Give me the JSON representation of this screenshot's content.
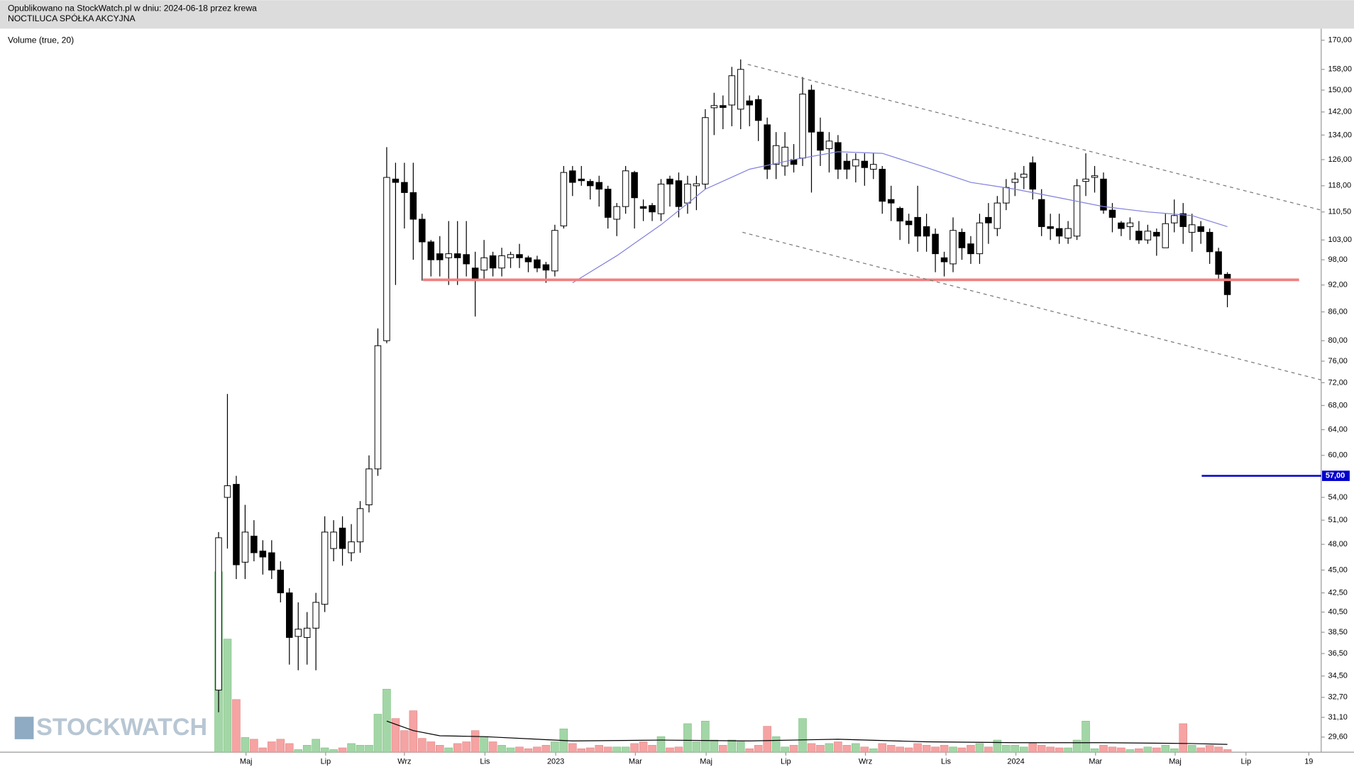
{
  "header": {
    "published": "Opublikowano na StockWatch.pl w dniu: 2024-06-18 przez krewa",
    "company": "NOCTILUCA SPÓŁKA AKCYJNA"
  },
  "watermark": "STOCKWATCH",
  "chart_data": {
    "type": "candlestick",
    "indicator_label": "Volume (true, 20)",
    "log_scale": true,
    "xlim": [
      -24.7,
      124.6
    ],
    "ylim": [
      28.5,
      175
    ],
    "volume_ylim": [
      0,
      838
    ],
    "up_color": "#ffffff",
    "down_color": "#000000",
    "volume_up_color": "#a3d6a6",
    "volume_down_color": "#f5a3a3",
    "xticks": [
      {
        "value": 3.1,
        "label": "Maj"
      },
      {
        "value": 12.1,
        "label": "Lip"
      },
      {
        "value": 21.0,
        "label": "Wrz"
      },
      {
        "value": 30.1,
        "label": "Lis"
      },
      {
        "value": 38.1,
        "label": "2023"
      },
      {
        "value": 47.1,
        "label": "Mar"
      },
      {
        "value": 55.1,
        "label": "Maj"
      },
      {
        "value": 64.1,
        "label": "Lip"
      },
      {
        "value": 73.1,
        "label": "Wrz"
      },
      {
        "value": 82.2,
        "label": "Lis"
      },
      {
        "value": 90.1,
        "label": "2024"
      },
      {
        "value": 99.1,
        "label": "Mar"
      },
      {
        "value": 108.1,
        "label": "Maj"
      },
      {
        "value": 116.1,
        "label": "Lip"
      },
      {
        "value": 123.2,
        "label": "19"
      }
    ],
    "yticks": [
      {
        "value": 170,
        "label": "170,00"
      },
      {
        "value": 158,
        "label": "158,00"
      },
      {
        "value": 150,
        "label": "150,00"
      },
      {
        "value": 142,
        "label": "142,00"
      },
      {
        "value": 134,
        "label": "134,00"
      },
      {
        "value": 126,
        "label": "126,00"
      },
      {
        "value": 118,
        "label": "118,00"
      },
      {
        "value": 110.5,
        "label": "110,50"
      },
      {
        "value": 103,
        "label": "103,00"
      },
      {
        "value": 98,
        "label": "98,00"
      },
      {
        "value": 92,
        "label": "92,00"
      },
      {
        "value": 86,
        "label": "86,00"
      },
      {
        "value": 80,
        "label": "80,00"
      },
      {
        "value": 76,
        "label": "76,00"
      },
      {
        "value": 72,
        "label": "72,00"
      },
      {
        "value": 68,
        "label": "68,00"
      },
      {
        "value": 64,
        "label": "64,00"
      },
      {
        "value": 60,
        "label": "60,00"
      },
      {
        "value": 54,
        "label": "54,00"
      },
      {
        "value": 51,
        "label": "51,00"
      },
      {
        "value": 48,
        "label": "48,00"
      },
      {
        "value": 45,
        "label": "45,00"
      },
      {
        "value": 42.5,
        "label": "42,50"
      },
      {
        "value": 40.5,
        "label": "40,50"
      },
      {
        "value": 38.5,
        "label": "38,50"
      },
      {
        "value": 36.5,
        "label": "36,50"
      },
      {
        "value": 34.5,
        "label": "34,50"
      },
      {
        "value": 32.7,
        "label": "32,70"
      },
      {
        "value": 31.1,
        "label": "31,10"
      },
      {
        "value": 29.6,
        "label": "29,60"
      }
    ],
    "price_marker": {
      "value": 57,
      "label": "57,00",
      "color": "#0000cc"
    },
    "open": [
      33.3,
      54,
      55.8,
      45.9,
      49,
      47.2,
      47,
      45,
      42.5,
      38.1,
      38,
      38.9,
      41.3,
      47.5,
      50,
      47,
      48.3,
      53,
      58,
      80,
      120,
      119,
      116,
      108.5,
      102.5,
      99.5,
      98.5,
      99.5,
      99.3,
      96,
      95.5,
      99,
      96,
      98.5,
      99.3,
      98.5,
      98,
      96.8,
      95.3,
      106.7,
      122.5,
      120,
      119.3,
      119,
      117,
      108.5,
      112,
      122,
      112,
      112.3,
      110,
      120,
      119.5,
      113,
      118,
      118.5,
      143.5,
      144.3,
      144.5,
      143,
      146,
      146.5,
      137.5,
      124.5,
      124,
      126,
      126.5,
      150,
      135,
      129.5,
      131.5,
      125.5,
      124,
      125.5,
      123,
      123,
      114,
      111.5,
      108,
      109,
      106.5,
      104.5,
      98.5,
      97,
      105,
      102,
      99.5,
      109,
      106,
      113,
      119,
      120.5,
      125,
      114,
      106.5,
      106,
      103.5,
      104,
      119.3,
      120.5,
      120,
      111,
      107.5,
      106.5,
      105.3,
      103,
      105,
      101,
      107.5,
      110,
      105,
      106.5,
      105,
      100,
      94.5
    ],
    "high": [
      49.5,
      70,
      57,
      53,
      51,
      48.5,
      48.5,
      46,
      43,
      41.5,
      40.5,
      42.5,
      51.5,
      51,
      51.5,
      50.5,
      53.5,
      60,
      82.5,
      130,
      125,
      125,
      125,
      110,
      103,
      104,
      108,
      108,
      108,
      100,
      103,
      100,
      101,
      100,
      102,
      99,
      99,
      97.5,
      107,
      124,
      124,
      124,
      120,
      121,
      118,
      113,
      124,
      122.5,
      114,
      113,
      120,
      121,
      122,
      121,
      121,
      143,
      149,
      148,
      159,
      162,
      148,
      148,
      140,
      135,
      135,
      131,
      155,
      152,
      140,
      135,
      134,
      128,
      128,
      128,
      128,
      124,
      118,
      112,
      110,
      118,
      110,
      106,
      100,
      109,
      106,
      104,
      110,
      113,
      115,
      120,
      122,
      124,
      127,
      117,
      110,
      110,
      108,
      120,
      128,
      124,
      122,
      113,
      108,
      109,
      108,
      107,
      106,
      110,
      114,
      113,
      110,
      108,
      106,
      101,
      95
    ],
    "low": [
      31.5,
      47.5,
      44,
      44,
      46,
      44.5,
      44,
      41.5,
      35.5,
      35,
      35.5,
      35,
      40.5,
      46,
      45.5,
      46,
      47,
      52,
      57,
      79.5,
      92,
      106,
      98,
      93,
      94,
      94,
      92,
      92,
      94,
      85,
      93,
      94,
      94,
      96,
      96,
      95,
      95,
      92.5,
      94,
      106,
      115,
      118,
      114,
      112,
      106,
      104,
      110,
      106,
      108,
      108,
      108,
      112,
      109,
      110,
      111,
      117,
      134,
      136,
      137,
      136,
      137,
      132,
      120,
      120,
      121,
      122,
      124,
      116,
      124,
      122,
      120,
      120,
      119,
      118,
      120,
      110,
      108,
      103,
      102,
      100,
      100,
      95,
      94,
      95,
      98,
      97,
      97,
      102,
      104,
      111,
      115,
      117,
      114,
      104,
      103,
      102,
      102,
      103,
      115,
      116,
      110,
      105,
      104,
      103,
      102,
      102,
      99,
      101,
      105,
      102,
      100,
      102,
      97,
      93,
      87
    ],
    "close": [
      48.8,
      55.6,
      45.6,
      49.5,
      47,
      46.5,
      45,
      42.5,
      38,
      38.8,
      38.9,
      41.5,
      49.5,
      49.5,
      47.5,
      48.3,
      52.5,
      58,
      79,
      120.5,
      119,
      116,
      108.5,
      102.5,
      98,
      98,
      99.5,
      98.5,
      97,
      93,
      98.5,
      96,
      99,
      99.3,
      98.5,
      97.5,
      96,
      95.5,
      105.5,
      122,
      119,
      119.5,
      118,
      117,
      109,
      112,
      122.5,
      114.5,
      111.5,
      110.5,
      118.5,
      118.5,
      112,
      118.5,
      118.6,
      140,
      144.3,
      143.6,
      155.5,
      158,
      144.5,
      139,
      123,
      130.5,
      130,
      124.5,
      148.5,
      135,
      129,
      132,
      123,
      123,
      126,
      123.5,
      124.5,
      113.5,
      113,
      108,
      107,
      104,
      104,
      99.5,
      97.5,
      105.5,
      101,
      99.5,
      107.5,
      107.5,
      113,
      117.5,
      120,
      121.5,
      117,
      106.5,
      106,
      104,
      106,
      118,
      120,
      121,
      111,
      109,
      106,
      107.5,
      103,
      105.3,
      104,
      107.3,
      109.5,
      106.5,
      107,
      105.2,
      100,
      94.5,
      89.8
    ],
    "volume": [
      209,
      131,
      61,
      17,
      15,
      5,
      12,
      15,
      10,
      3,
      8,
      15,
      5,
      3,
      5,
      10,
      8,
      8,
      44,
      73,
      39,
      25,
      48,
      16,
      12,
      8,
      5,
      10,
      12,
      25,
      18,
      12,
      8,
      5,
      6,
      4,
      6,
      8,
      12,
      27,
      10,
      4,
      5,
      8,
      6,
      6,
      6,
      10,
      12,
      8,
      18,
      5,
      6,
      33,
      12,
      36,
      14,
      8,
      14,
      12,
      4,
      8,
      30,
      18,
      6,
      8,
      39,
      10,
      8,
      10,
      12,
      8,
      10,
      6,
      4,
      10,
      8,
      6,
      5,
      10,
      8,
      6,
      8,
      6,
      5,
      8,
      10,
      6,
      14,
      8,
      8,
      6,
      10,
      8,
      6,
      5,
      5,
      14,
      36,
      4,
      8,
      6,
      5,
      3,
      4,
      6,
      5,
      8,
      4,
      33,
      8,
      5,
      8,
      6,
      3
    ],
    "lines": [
      {
        "panel": "price",
        "color": "#8080dd",
        "width": 1,
        "dash": false,
        "x": [
          40,
          45,
          50,
          55,
          60,
          65,
          70,
          75,
          80,
          85,
          90,
          95,
          100,
          105,
          110,
          114
        ],
        "values": [
          92.5,
          99,
          107,
          117,
          123,
          126,
          128.5,
          128,
          123.5,
          119,
          117,
          114.5,
          112,
          110.5,
          109.5,
          106.5
        ]
      },
      {
        "panel": "price",
        "color": "#f08080",
        "width": 3,
        "dash": false,
        "x": [
          23.1,
          122.1
        ],
        "values": [
          93.2,
          93.2
        ]
      },
      {
        "panel": "price",
        "color": "#777777",
        "width": 1,
        "dash": true,
        "x": [
          59.8,
          124.6
        ],
        "values": [
          160,
          111
        ]
      },
      {
        "panel": "price",
        "color": "#777777",
        "width": 1,
        "dash": true,
        "x": [
          59.2,
          124.6
        ],
        "values": [
          105,
          72.5
        ]
      },
      {
        "panel": "price",
        "color": "#0000cc",
        "width": 2,
        "dash": false,
        "x": [
          111.1,
          124.6
        ],
        "values": [
          57,
          57
        ]
      },
      {
        "panel": "volume",
        "color": "#000000",
        "width": 1,
        "dash": false,
        "x": [
          19,
          22,
          25,
          30,
          40,
          50,
          60,
          70,
          80,
          90,
          100,
          110,
          114
        ],
        "values": [
          36,
          25,
          19,
          18,
          13,
          14,
          13,
          15,
          12,
          11,
          11,
          10,
          9
        ]
      }
    ]
  }
}
